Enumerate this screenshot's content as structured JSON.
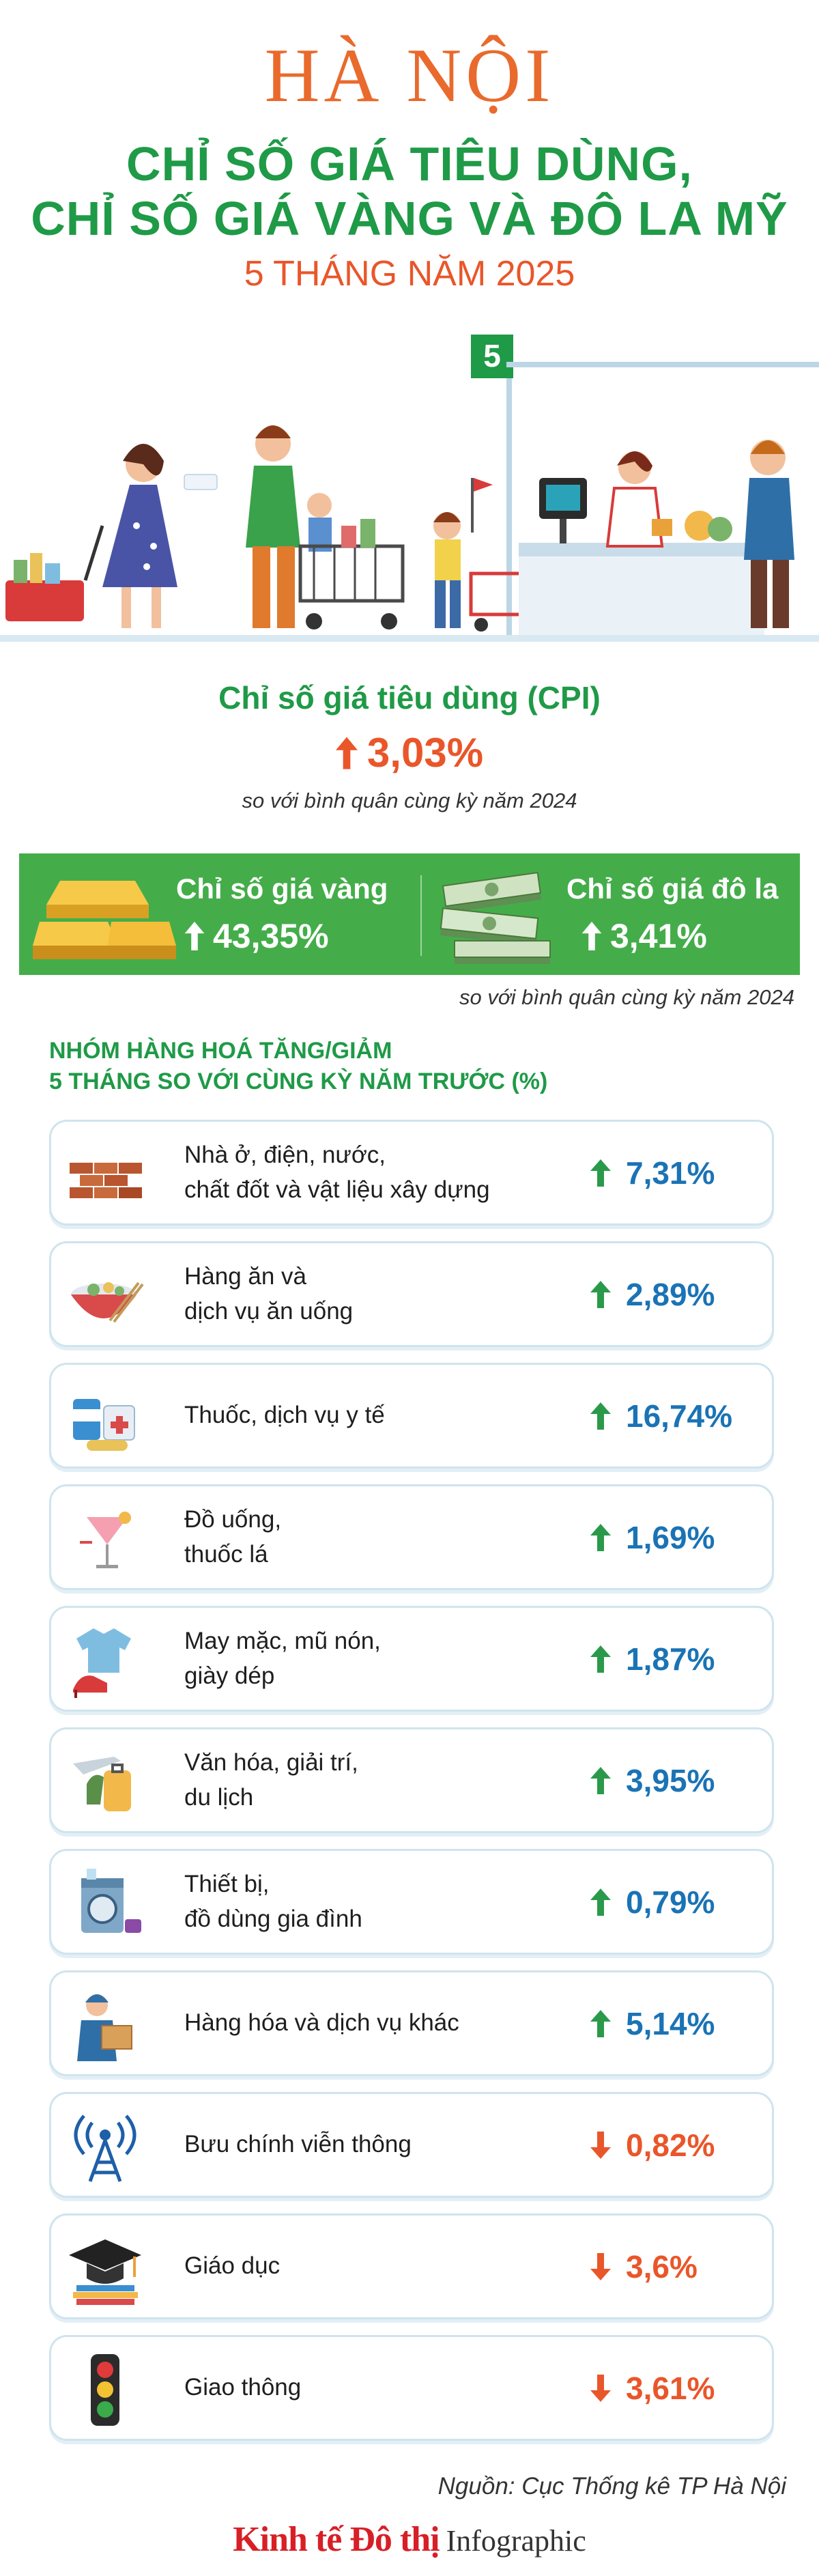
{
  "header": {
    "city": "HÀ NỘI",
    "subtitle_line1": "CHỈ SỐ GIÁ TIÊU DÙNG,",
    "subtitle_line2": "CHỈ SỐ GIÁ VÀNG VÀ ĐÔ LA MỸ",
    "period": "5 THÁNG NĂM 2025"
  },
  "illustration": {
    "sign_number": "5"
  },
  "cpi": {
    "title": "Chỉ số giá tiêu dùng (CPI)",
    "value": "3,03%",
    "direction": "up",
    "note": "so với bình quân cùng kỳ năm 2024"
  },
  "band": {
    "gold_label": "Chỉ số giá vàng",
    "gold_value": "43,35%",
    "dollar_label": "Chỉ số giá đô la",
    "dollar_value": "3,41%",
    "note": "so với bình quân cùng kỳ năm 2024"
  },
  "groups": {
    "heading_line1": "NHÓM HÀNG HOÁ TĂNG/GIẢM",
    "heading_line2": "5 THÁNG SO VỚI CÙNG KỲ NĂM TRƯỚC (%)",
    "items": [
      {
        "label": "Nhà ở, điện, nước,\nchất đốt và vật liệu xây dựng",
        "value": "7,31%",
        "direction": "up",
        "icon": "bricks-icon"
      },
      {
        "label": "Hàng ăn và\ndịch vụ ăn uống",
        "value": "2,89%",
        "direction": "up",
        "icon": "food-bowl-icon"
      },
      {
        "label": "Thuốc, dịch vụ y tế",
        "value": "16,74%",
        "direction": "up",
        "icon": "medicine-icon"
      },
      {
        "label": "Đồ uống,\nthuốc lá",
        "value": "1,69%",
        "direction": "up",
        "icon": "cocktail-icon"
      },
      {
        "label": "May mặc, mũ nón,\ngiày dép",
        "value": "1,87%",
        "direction": "up",
        "icon": "clothing-icon"
      },
      {
        "label": "Văn hóa, giải trí,\ndu lịch",
        "value": "3,95%",
        "direction": "up",
        "icon": "travel-icon"
      },
      {
        "label": "Thiết bị,\nđồ dùng gia đình",
        "value": "0,79%",
        "direction": "up",
        "icon": "washing-machine-icon"
      },
      {
        "label": "Hàng hóa và dịch vụ khác",
        "value": "5,14%",
        "direction": "up",
        "icon": "delivery-icon"
      },
      {
        "label": "Bưu chính viễn thông",
        "value": "0,82%",
        "direction": "down",
        "icon": "antenna-icon"
      },
      {
        "label": "Giáo dục",
        "value": "3,6%",
        "direction": "down",
        "icon": "graduation-cap-icon"
      },
      {
        "label": "Giao thông",
        "value": "3,61%",
        "direction": "down",
        "icon": "traffic-light-icon"
      }
    ]
  },
  "footer": {
    "source": "Nguồn: Cục Thống kê TP Hà Nội",
    "brand_name": "Kinh tế Đô thị",
    "brand_tag": "Infographic"
  },
  "colors": {
    "title_orange": "#e96a2c",
    "title_green": "#1f9a47",
    "band_green": "#44ad4a",
    "value_blue": "#1a73b5",
    "arrow_green": "#2a9a4a",
    "down_orange": "#e9562a",
    "brand_red": "#d81f26"
  }
}
